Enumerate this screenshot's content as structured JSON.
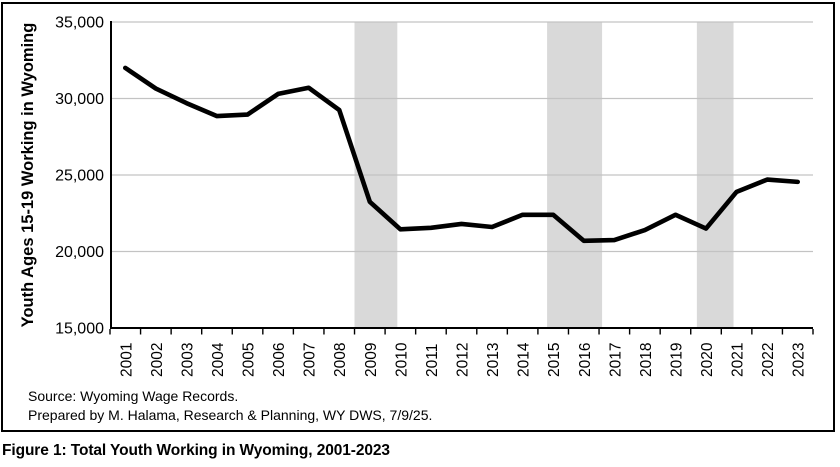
{
  "caption": "Figure 1: Total Youth Working in Wyoming, 2001-2023",
  "source": {
    "line1": "Source: Wyoming Wage Records.",
    "line2": "Prepared by M. Halama, Research & Planning, WY DWS, 7/9/25."
  },
  "chart_data": {
    "type": "line",
    "title": "",
    "xlabel": "",
    "ylabel": "Youth Ages 15-19 Working in Wyoming",
    "categories": [
      "2001",
      "2002",
      "2003",
      "2004",
      "2005",
      "2006",
      "2007",
      "2008",
      "2009",
      "2010",
      "2011",
      "2012",
      "2013",
      "2014",
      "2015",
      "2016",
      "2017",
      "2018",
      "2019",
      "2020",
      "2021",
      "2022",
      "2023"
    ],
    "values": [
      32000,
      30650,
      29700,
      28850,
      28950,
      30300,
      30700,
      29250,
      23250,
      21450,
      21550,
      21800,
      21600,
      22400,
      22400,
      20700,
      20750,
      21400,
      22400,
      21500,
      23900,
      24700,
      24550
    ],
    "ylim": [
      15000,
      35000
    ],
    "yticks": [
      15000,
      20000,
      25000,
      30000,
      35000
    ],
    "ytick_labels": [
      "15,000",
      "20,000",
      "25,000",
      "30,000",
      "35,000"
    ],
    "grid": true,
    "legend": "none",
    "line_color": "#000000",
    "gridline_color": "#c3c3c3",
    "axis_color": "#000000",
    "band_color": "#d9d9d9",
    "shaded_periods": [
      {
        "from": 2008.5,
        "to": 2009.9
      },
      {
        "from": 2014.8,
        "to": 2016.6
      },
      {
        "from": 2019.7,
        "to": 2020.9
      }
    ]
  }
}
